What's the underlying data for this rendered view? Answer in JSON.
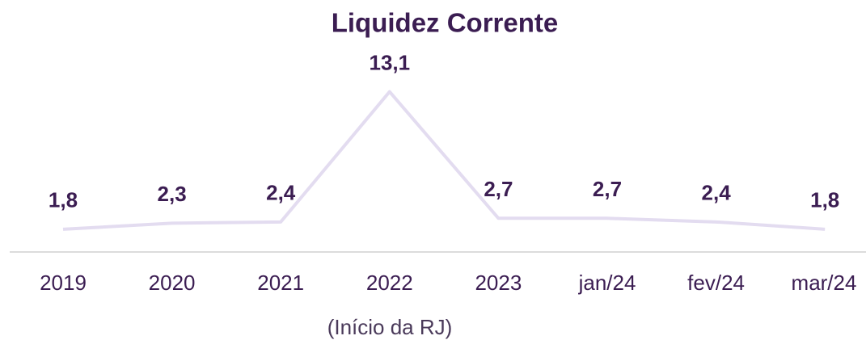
{
  "chart_data": {
    "type": "line",
    "title": "Liquidez Corrente",
    "categories": [
      "2019",
      "2020",
      "2021",
      "2022",
      "2023",
      "jan/24",
      "fev/24",
      "mar/24"
    ],
    "values": [
      1.8,
      2.3,
      2.4,
      13.1,
      2.7,
      2.7,
      2.4,
      1.8
    ],
    "value_labels": [
      "1,8",
      "2,3",
      "2,4",
      "13,1",
      "2,7",
      "2,7",
      "2,4",
      "1,8"
    ],
    "color": "#e3dcf0",
    "annotation": "(Início da RJ)",
    "ylim": [
      0,
      14
    ]
  }
}
